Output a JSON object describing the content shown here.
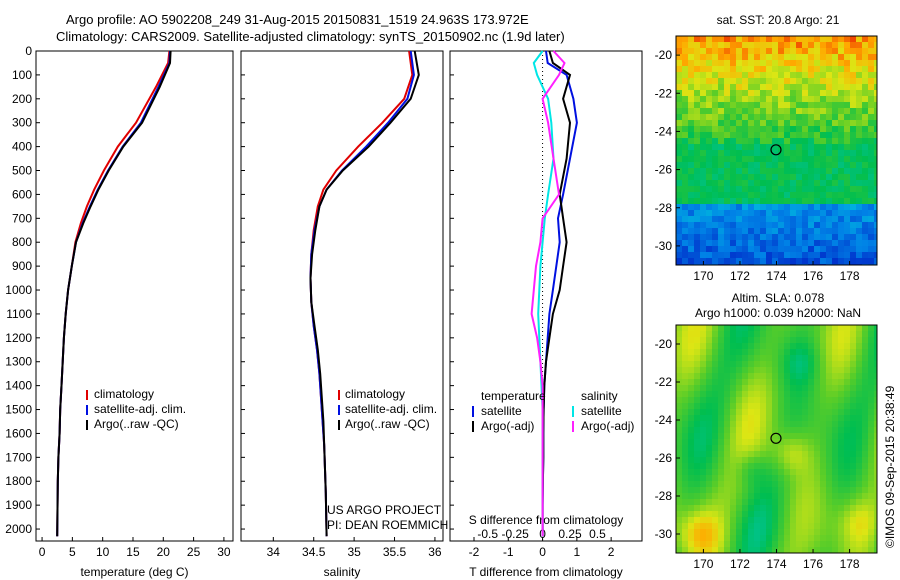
{
  "titles": {
    "line1": "Argo profile: AO 5902208_249 31-Aug-2015 20150831_1519 24.963S 173.972E",
    "line2": "Climatology: CARS2009. Satellite-adjusted climatology: synTS_20150902.nc (1.9d later)",
    "sst": "sat. SST: 20.8 Argo: 21",
    "sla1": "Altim. SLA: 0.078",
    "sla2": "Argo h1000: 0.039 h2000: NaN",
    "credit": "©IMOS 09-Sep-2015 20:38:49"
  },
  "colors": {
    "climatology": "#e00000",
    "satellite": "#0010e0",
    "argo": "#000000",
    "sal_satellite": "#00e6e6",
    "sal_argo": "#ff20ff"
  },
  "chart_data": [
    {
      "type": "line",
      "xlabel": "temperature (deg C)",
      "ylim": [
        2050,
        0
      ],
      "xlim": [
        -1,
        31.5
      ],
      "xticks": [
        "0",
        "5",
        "10",
        "15",
        "20",
        "25",
        "30"
      ],
      "yticks": [
        "0",
        "100",
        "200",
        "300",
        "400",
        "500",
        "600",
        "700",
        "800",
        "900",
        "1000",
        "1100",
        "1200",
        "1300",
        "1400",
        "1500",
        "1600",
        "1700",
        "1800",
        "1900",
        "2000"
      ],
      "legend": [
        "climatology",
        "satellite-adj. clim.",
        "Argo(..raw -QC)"
      ],
      "series": [
        {
          "name": "climatology",
          "x": [
            21.0,
            20.8,
            18.8,
            15.5,
            12.5,
            10.2,
            8.6,
            7.4,
            6.4,
            5.5,
            4.9,
            4.3,
            3.9,
            3.6,
            3.4,
            3.2,
            3.0,
            2.9,
            2.7,
            2.6,
            2.5
          ],
          "y": [
            0,
            50,
            150,
            300,
            400,
            500,
            580,
            650,
            720,
            800,
            900,
            1000,
            1100,
            1200,
            1300,
            1400,
            1500,
            1600,
            1700,
            1800,
            2030
          ]
        },
        {
          "name": "satellite-adj. clim.",
          "x": [
            21.1,
            21.0,
            19.2,
            16.3,
            13.3,
            10.9,
            9.2,
            7.9,
            6.7,
            5.6,
            4.9,
            4.3,
            3.9,
            3.6,
            3.4,
            3.2,
            3.0,
            2.9,
            2.7,
            2.6,
            2.5
          ],
          "y": [
            0,
            50,
            150,
            300,
            400,
            500,
            580,
            650,
            720,
            800,
            900,
            1000,
            1100,
            1200,
            1300,
            1400,
            1500,
            1600,
            1700,
            1800,
            2030
          ]
        },
        {
          "name": "Argo(..raw -QC)",
          "x": [
            21.2,
            21.1,
            19.4,
            16.5,
            13.4,
            11.0,
            9.3,
            8.0,
            6.8,
            5.6,
            4.9,
            4.3,
            3.9,
            3.6,
            3.4,
            3.2,
            3.0,
            2.9,
            2.7,
            2.6,
            2.5
          ],
          "y": [
            0,
            50,
            150,
            300,
            400,
            500,
            580,
            650,
            720,
            800,
            900,
            1000,
            1100,
            1200,
            1300,
            1400,
            1500,
            1600,
            1700,
            1800,
            2030
          ]
        }
      ]
    },
    {
      "type": "line",
      "xlabel": "salinity",
      "ylim": [
        2050,
        0
      ],
      "xlim": [
        33.6,
        36.1
      ],
      "xticks": [
        "34",
        "34.5",
        "35",
        "35.5",
        "36"
      ],
      "legend": [
        "climatology",
        "satellite-adj. clim.",
        "Argo(..raw -QC)"
      ],
      "annotations": [
        "US ARGO PROJECT",
        "PI: DEAN ROEMMICH"
      ],
      "series": [
        {
          "name": "climatology",
          "x": [
            35.68,
            35.72,
            35.62,
            35.35,
            35.05,
            34.78,
            34.62,
            34.55,
            34.5,
            34.47,
            34.46,
            34.47,
            34.5,
            34.54,
            34.57,
            34.59,
            34.61,
            34.63,
            34.64,
            34.65,
            34.66
          ],
          "y": [
            0,
            100,
            200,
            300,
            400,
            500,
            580,
            650,
            750,
            850,
            950,
            1050,
            1150,
            1250,
            1350,
            1450,
            1550,
            1650,
            1750,
            1850,
            2030
          ]
        },
        {
          "name": "satellite-adj. clim.",
          "x": [
            35.7,
            35.74,
            35.66,
            35.42,
            35.15,
            34.85,
            34.66,
            34.57,
            34.51,
            34.47,
            34.46,
            34.47,
            34.5,
            34.54,
            34.57,
            34.59,
            34.61,
            34.63,
            34.64,
            34.65,
            34.66
          ],
          "y": [
            0,
            100,
            200,
            300,
            400,
            500,
            580,
            650,
            750,
            850,
            950,
            1050,
            1150,
            1250,
            1350,
            1450,
            1550,
            1650,
            1750,
            1850,
            2030
          ]
        },
        {
          "name": "Argo(..raw -QC)",
          "x": [
            35.75,
            35.8,
            35.7,
            35.45,
            35.18,
            34.86,
            34.66,
            34.57,
            34.52,
            34.48,
            34.46,
            34.47,
            34.51,
            34.55,
            34.58,
            34.6,
            34.62,
            34.63,
            34.64,
            34.65,
            34.66
          ],
          "y": [
            0,
            100,
            200,
            300,
            400,
            500,
            580,
            650,
            750,
            850,
            950,
            1050,
            1150,
            1250,
            1350,
            1450,
            1550,
            1650,
            1750,
            1850,
            2030
          ]
        }
      ]
    },
    {
      "type": "line",
      "xlabel": "T difference from climatology",
      "xlabel_top": "S difference from climatology",
      "ylim": [
        2050,
        0
      ],
      "xlim": [
        -2.7,
        2.9
      ],
      "xticks": [
        "-2",
        "-1",
        "0",
        "1",
        "2"
      ],
      "xticks_top": [
        "-0.5",
        "-0.25",
        "0",
        "0.25",
        "0.5"
      ],
      "legend_headers": [
        "temperature",
        "salinity"
      ],
      "legend": [
        "satellite",
        "Argo(-adj)",
        "satellite",
        "Argo(-adj)"
      ],
      "series": [
        {
          "name": "temperature satellite",
          "x": [
            0.1,
            0.15,
            0.7,
            0.9,
            1.0,
            0.8,
            0.6,
            0.45,
            0.5,
            0.4,
            0.3,
            0.2,
            0.15,
            0.1,
            0.05,
            0.03,
            0.02,
            0.02,
            0.01,
            0.0,
            0.0
          ],
          "y": [
            0,
            50,
            100,
            200,
            300,
            450,
            600,
            700,
            800,
            900,
            1000,
            1100,
            1200,
            1300,
            1400,
            1500,
            1600,
            1700,
            1800,
            1900,
            2030
          ]
        },
        {
          "name": "temperature Argo(-adj)",
          "x": [
            0.2,
            0.3,
            0.8,
            0.6,
            0.8,
            0.7,
            0.5,
            0.6,
            0.7,
            0.6,
            0.5,
            0.3,
            0.2,
            0.1,
            0.05,
            0.03,
            0.02,
            0.02,
            0.01,
            0.0,
            0.0
          ],
          "y": [
            0,
            50,
            100,
            200,
            300,
            450,
            600,
            700,
            800,
            900,
            1000,
            1100,
            1200,
            1300,
            1400,
            1500,
            1600,
            1700,
            1800,
            1900,
            2030
          ]
        },
        {
          "name": "salinity satellite",
          "x": [
            0.0,
            -0.08,
            -0.05,
            0.05,
            0.08,
            0.1,
            0.05,
            0.02,
            0.0,
            -0.02,
            -0.03,
            -0.04,
            -0.03,
            -0.02,
            -0.01,
            0.0,
            0.0,
            0.0,
            0.0,
            0.0,
            0.0
          ],
          "y": [
            0,
            50,
            100,
            200,
            300,
            450,
            600,
            700,
            800,
            900,
            1000,
            1100,
            1200,
            1300,
            1400,
            1500,
            1600,
            1700,
            1800,
            1900,
            2030
          ]
        },
        {
          "name": "salinity Argo(-adj)",
          "x": [
            0.1,
            0.2,
            0.15,
            0.0,
            0.05,
            0.1,
            0.15,
            0.0,
            -0.02,
            -0.06,
            -0.08,
            -0.1,
            -0.05,
            -0.02,
            0.0,
            0.0,
            0.0,
            0.0,
            0.0,
            0.0,
            0.0
          ],
          "y": [
            0,
            50,
            100,
            200,
            300,
            450,
            600,
            700,
            800,
            900,
            1000,
            1100,
            1200,
            1300,
            1400,
            1500,
            1600,
            1700,
            1800,
            1900,
            2030
          ]
        }
      ]
    },
    {
      "type": "heatmap",
      "title": "sat. SST: 20.8 Argo: 21",
      "xlim": [
        168.5,
        179.5
      ],
      "ylim": [
        -31,
        -19
      ],
      "xticks": [
        "170",
        "172",
        "174",
        "176",
        "178"
      ],
      "yticks": [
        "-20",
        "-22",
        "-24",
        "-26",
        "-28",
        "-30"
      ],
      "marker": {
        "lon": 173.972,
        "lat": -24.963
      }
    },
    {
      "type": "heatmap",
      "title": "Altim. SLA: 0.078",
      "xlim": [
        168.5,
        179.5
      ],
      "ylim": [
        -31,
        -19
      ],
      "xticks": [
        "170",
        "172",
        "174",
        "176",
        "178"
      ],
      "yticks": [
        "-20",
        "-22",
        "-24",
        "-26",
        "-28",
        "-30"
      ],
      "marker": {
        "lon": 173.972,
        "lat": -24.963
      }
    }
  ]
}
